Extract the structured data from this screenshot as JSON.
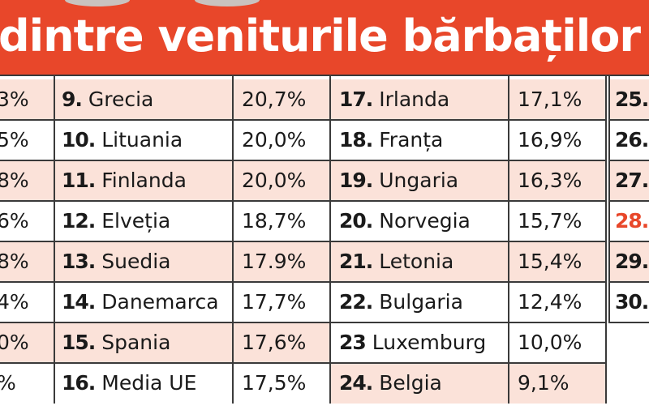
{
  "title": "dintre veniturile bărbaților și al",
  "colors": {
    "header": "#e8472a",
    "row_highlight": "#fbe2d9",
    "border": "#3a3a3a",
    "highlight_rank": "#e8472a"
  },
  "col0_values": [
    "3%",
    "5%",
    "8%",
    "6%",
    "8%",
    "4%",
    "0%",
    "%"
  ],
  "col1": [
    {
      "rank": "9.",
      "country": "Grecia",
      "value": "20,7%"
    },
    {
      "rank": "10.",
      "country": "Lituania",
      "value": "20,0%"
    },
    {
      "rank": "11.",
      "country": "Finlanda",
      "value": "20,0%"
    },
    {
      "rank": "12.",
      "country": "Elveția",
      "value": "18,7%"
    },
    {
      "rank": "13.",
      "country": "Suedia",
      "value": "17.9%"
    },
    {
      "rank": "14.",
      "country": "Danemarca",
      "value": "17,7%"
    },
    {
      "rank": "15.",
      "country": "Spania",
      "value": "17,6%"
    },
    {
      "rank": "16.",
      "country": "Media UE",
      "value": "17,5%"
    }
  ],
  "col2": [
    {
      "rank": "17.",
      "country": "Irlanda",
      "value": "17,1%"
    },
    {
      "rank": "18.",
      "country": "Franța",
      "value": "16,9%"
    },
    {
      "rank": "19.",
      "country": "Ungaria",
      "value": "16,3%"
    },
    {
      "rank": "20.",
      "country": "Norvegia",
      "value": "15,7%"
    },
    {
      "rank": "21.",
      "country": "Letonia",
      "value": "15,4%"
    },
    {
      "rank": "22.",
      "country": "Bulgaria",
      "value": "12,4%"
    },
    {
      "rank": "23",
      "country": "Luxemburg",
      "value": "10,0%"
    },
    {
      "rank": "24.",
      "country": "Belgia",
      "value": "9,1%"
    }
  ],
  "col3": [
    {
      "rank": "25.",
      "country": "I"
    },
    {
      "rank": "26.",
      "country": ""
    },
    {
      "rank": "27.",
      "country": "I"
    },
    {
      "rank": "28.",
      "country": "I"
    },
    {
      "rank": "29.",
      "country": ""
    },
    {
      "rank": "30.",
      "country": ""
    }
  ]
}
